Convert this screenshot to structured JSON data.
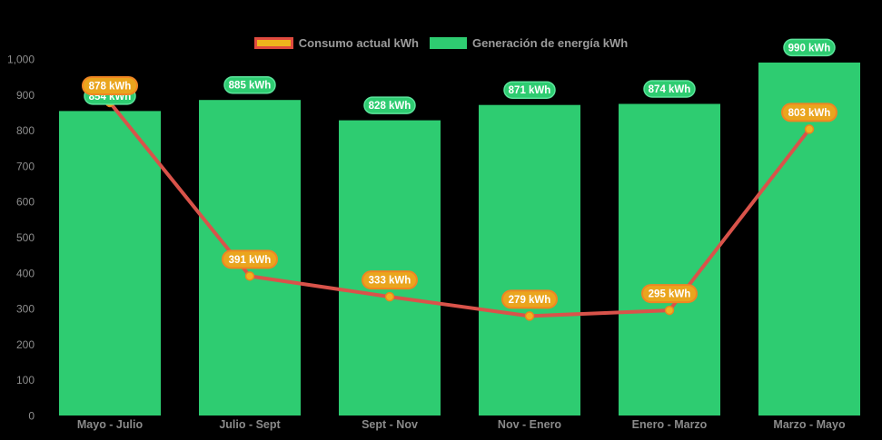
{
  "colors": {
    "background": "#000000",
    "bar_green": "#2ecc71",
    "badge_green_fill": "#2ecc71",
    "badge_green_stroke": "#5be49b",
    "line_red": "#d9534a",
    "dot_fill": "#f0b31e",
    "dot_stroke": "#ea8420",
    "badge_orange_fill": "#eaa51e",
    "badge_orange_stroke": "#f08522",
    "legend_swatch_yellow": "#eeb41c",
    "legend_swatch_red_border": "#e04b3f",
    "axis_text": "#8d8d8d",
    "legend_text": "#9b9b9b",
    "badge_text": "#ffffff"
  },
  "legend": {
    "consumption_label": "Consumo actual kWh",
    "generation_label": "Generación de energía kWh"
  },
  "chart_data": {
    "type": "bar",
    "subtype": "bar-with-line-overlay",
    "title": "",
    "xlabel": "",
    "ylabel": "",
    "categories": [
      "Mayo - Julio",
      "Julio - Sept",
      "Sept - Nov",
      "Nov - Enero",
      "Enero - Marzo",
      "Marzo - Mayo"
    ],
    "series": [
      {
        "name": "Generación de energía kWh",
        "type": "bar",
        "values": [
          854,
          885,
          828,
          871,
          874,
          990
        ],
        "labels": [
          "854 kWh",
          "885 kWh",
          "828 kWh",
          "871 kWh",
          "874 kWh",
          "990 kWh"
        ]
      },
      {
        "name": "Consumo actual kWh",
        "type": "line",
        "values": [
          878,
          391,
          333,
          279,
          295,
          803
        ],
        "labels": [
          "878 kWh",
          "391 kWh",
          "333 kWh",
          "279 kWh",
          "295 kWh",
          "803 kWh"
        ]
      }
    ],
    "ylim": [
      0,
      1000
    ],
    "y_ticks": [
      {
        "value": 0,
        "label": "0"
      },
      {
        "value": 100,
        "label": "100"
      },
      {
        "value": 200,
        "label": "200"
      },
      {
        "value": 300,
        "label": "300"
      },
      {
        "value": 400,
        "label": "400"
      },
      {
        "value": 500,
        "label": "500"
      },
      {
        "value": 600,
        "label": "600"
      },
      {
        "value": 700,
        "label": "700"
      },
      {
        "value": 800,
        "label": "800"
      },
      {
        "value": 900,
        "label": "900"
      },
      {
        "value": 1000,
        "label": "1,000"
      }
    ],
    "grid": false,
    "legend_position": "top-center"
  }
}
